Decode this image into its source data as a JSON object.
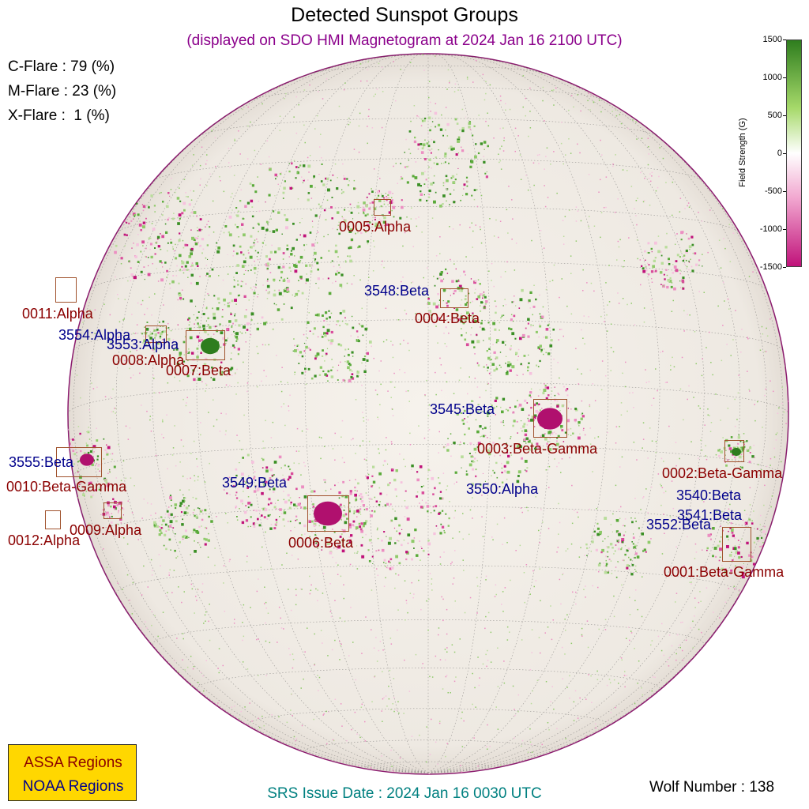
{
  "header": {
    "title": "Detected Sunspot Groups",
    "subtitle": "(displayed on SDO HMI Magnetogram at 2024 Jan 16 2100 UTC)"
  },
  "flare_probabilities": {
    "c_flare": "C-Flare : 79 (%)",
    "m_flare": "M-Flare : 23 (%)",
    "x_flare": "X-Flare :  1 (%)"
  },
  "colorbar": {
    "title": "Field Strength (G)",
    "ticks": [
      "1500",
      "1000",
      "500",
      "0",
      "-500",
      "-1000",
      "-1500"
    ],
    "colors": {
      "positive": "#2e7d1e",
      "zero": "#ffffff",
      "negative": "#c0127a"
    }
  },
  "assa_labels": {
    "r0005": "0005:Alpha",
    "r0004": "0004:Beta",
    "r0011": "0011:Alpha",
    "r0008": "0008:Alpha",
    "r0007": "0007:Beta",
    "r0003": "0003:Beta-Gamma",
    "r0002": "0002:Beta-Gamma",
    "r0010": "0010:Beta-Gamma",
    "r0009": "0009:Alpha",
    "r0012": "0012:Alpha",
    "r0006": "0006:Beta",
    "r0001": "0001:Beta-Gamma"
  },
  "noaa_labels": {
    "r3548": "3548:Beta",
    "r3554": "3554:Alpha",
    "r3553": "3553:Alpha",
    "r3545": "3545:Beta",
    "r3555": "3555:Beta",
    "r3549": "3549:Beta",
    "r3550": "3550:Alpha",
    "r3540": "3540:Beta",
    "r3541": "3541:Beta",
    "r3552": "3552:Beta"
  },
  "legend": {
    "assa": "ASSA Regions",
    "noaa": "NOAA Regions"
  },
  "footer": {
    "srs": "SRS Issue Date : 2024 Jan 16 0030 UTC",
    "wolf": "Wolf Number : 138"
  },
  "colors": {
    "assa_text": "#8b0000",
    "noaa_text": "#00008b",
    "subtitle": "#8b008b",
    "srs": "#008080",
    "legend_bg": "#ffd700",
    "disk_bg": "#f3eee8"
  }
}
